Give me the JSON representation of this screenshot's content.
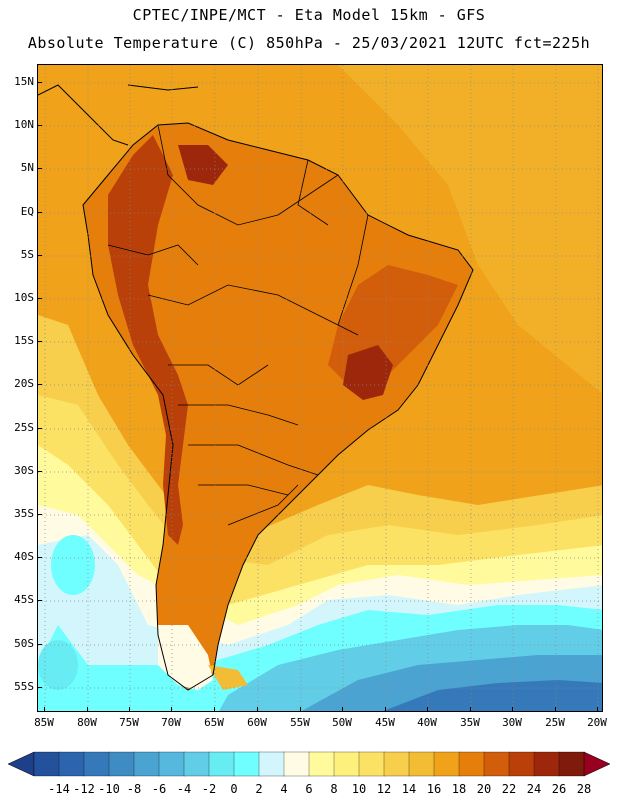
{
  "header": {
    "line1": "CPTEC/INPE/MCT -  Eta Model 15km - GFS",
    "line2": "Absolute Temperature (C) 850hPa - 25/03/2021 12UTC fct=225h"
  },
  "map": {
    "variable": "Absolute Temperature",
    "units": "C",
    "level": "850hPa",
    "lat_labels": [
      "15N",
      "10N",
      "5N",
      "EQ",
      "5S",
      "10S",
      "15S",
      "20S",
      "25S",
      "30S",
      "35S",
      "40S",
      "45S",
      "50S",
      "55S"
    ],
    "lon_labels": [
      "85W",
      "80W",
      "75W",
      "70W",
      "65W",
      "60W",
      "55W",
      "50W",
      "45W",
      "40W",
      "35W",
      "30W",
      "25W",
      "20W"
    ]
  },
  "colorbar": {
    "labels": [
      "-14",
      "-12",
      "-10",
      "-8",
      "-6",
      "-4",
      "-2",
      "0",
      "2",
      "4",
      "6",
      "8",
      "10",
      "12",
      "14",
      "16",
      "18",
      "20",
      "22",
      "24",
      "26",
      "28"
    ],
    "colors": [
      "#1e3f8a",
      "#24519c",
      "#2c64ae",
      "#3679ba",
      "#3f8cc4",
      "#4aa3d0",
      "#55b8dc",
      "#62cde6",
      "#66ecf2",
      "#6ffffe",
      "#d2f6fc",
      "#fffbe5",
      "#fffb9c",
      "#fdf07c",
      "#fbe264",
      "#f7cf4c",
      "#f2bc34",
      "#f0a21a",
      "#e67e0c",
      "#d25e0b",
      "#b94009",
      "#9c270a",
      "#7e1b0b",
      "#97001e"
    ]
  }
}
